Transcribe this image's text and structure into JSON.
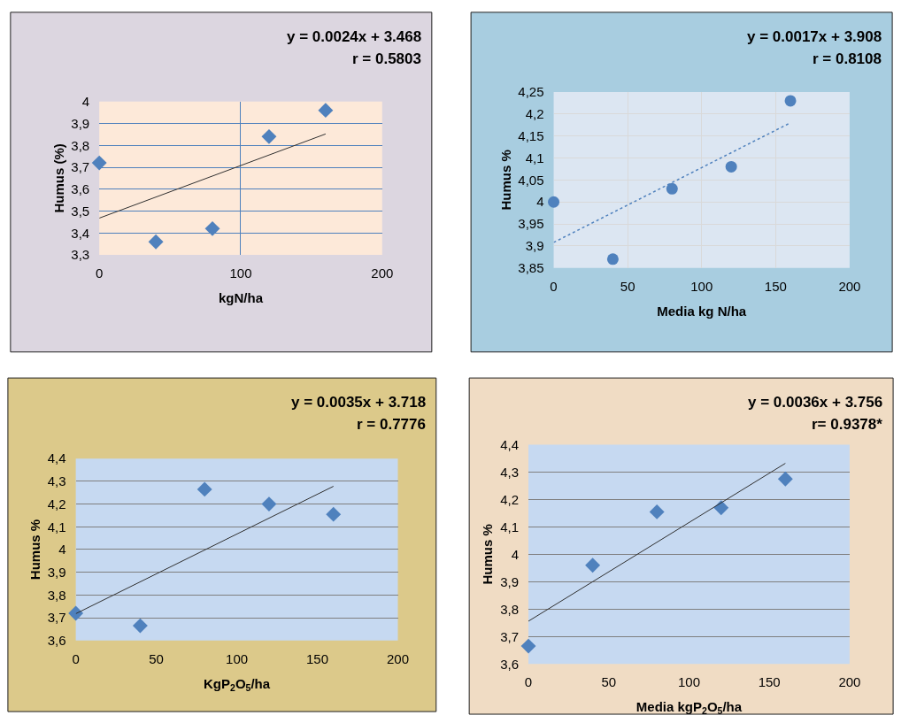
{
  "chart_data": [
    {
      "type": "scatter",
      "xlabel": "kgN/ha",
      "ylabel": "Humus (%)",
      "annotations": [
        "y = 0.0024x + 3.468",
        "r = 0.5803"
      ],
      "xlim": [
        0,
        200
      ],
      "xticks": [
        0,
        100,
        200
      ],
      "ylim": [
        3.3,
        4
      ],
      "yticks": [
        {
          "value": 3.3,
          "label": "3,3"
        },
        {
          "value": 3.4,
          "label": "3,4"
        },
        {
          "value": 3.5,
          "label": "3,5"
        },
        {
          "value": 3.6,
          "label": "3,6"
        },
        {
          "value": 3.7,
          "label": "3,7"
        },
        {
          "value": 3.8,
          "label": "3,8"
        },
        {
          "value": 3.9,
          "label": "3,9"
        },
        4
      ],
      "grid": true,
      "series": [
        {
          "color": "#4f81bd",
          "marker": "diamond",
          "x": [
            0,
            40,
            80,
            120,
            160
          ],
          "values": [
            3.72,
            3.36,
            3.42,
            3.84,
            3.96
          ]
        },
        {
          "type": "line",
          "color": "#303030",
          "line_style": "solid",
          "x": [
            0,
            160
          ],
          "values": [
            3.468,
            3.852
          ]
        }
      ]
    },
    {
      "type": "scatter",
      "xlabel": "Media kg N/ha",
      "ylabel": "Humus %",
      "annotations": [
        "y = 0.0017x + 3.908",
        "r = 0.8108"
      ],
      "xlim": [
        0,
        200
      ],
      "xticks": [
        0,
        50,
        100,
        150,
        200
      ],
      "ylim": [
        3.85,
        4.25
      ],
      "yticks": [
        {
          "value": 3.85,
          "label": "3,85"
        },
        {
          "value": 3.9,
          "label": "3,9"
        },
        {
          "value": 3.95,
          "label": "3,95"
        },
        4,
        {
          "value": 4.05,
          "label": "4,05"
        },
        {
          "value": 4.1,
          "label": "4,1"
        },
        {
          "value": 4.15,
          "label": "4,15"
        },
        {
          "value": 4.2,
          "label": "4,2"
        },
        {
          "value": 4.25,
          "label": "4,25"
        }
      ],
      "grid": true,
      "series": [
        {
          "color": "#4f81bd",
          "marker": "circle",
          "x": [
            0,
            40,
            80,
            120,
            160
          ],
          "values": [
            4.0,
            3.87,
            4.03,
            4.08,
            4.23
          ]
        },
        {
          "type": "line",
          "color": "#4f81bd",
          "line_style": "dotted",
          "x": [
            0,
            160
          ],
          "values": [
            3.908,
            4.18
          ]
        }
      ]
    },
    {
      "type": "scatter",
      "xlabel": "KgP$_{2}$O$_{5}$/ha",
      "ylabel": "Humus %",
      "annotations": [
        "y = 0.0035x + 3.718",
        "r = 0.7776"
      ],
      "xlim": [
        0,
        200
      ],
      "xticks": [
        0,
        50,
        100,
        150,
        200
      ],
      "ylim": [
        3.6,
        4.4
      ],
      "yticks": [
        {
          "value": 3.6,
          "label": "3,6"
        },
        {
          "value": 3.7,
          "label": "3,7"
        },
        {
          "value": 3.8,
          "label": "3,8"
        },
        {
          "value": 3.9,
          "label": "3,9"
        },
        4,
        {
          "value": 4.1,
          "label": "4,1"
        },
        {
          "value": 4.2,
          "label": "4,2"
        },
        {
          "value": 4.3,
          "label": "4,3"
        },
        {
          "value": 4.4,
          "label": "4,4"
        }
      ],
      "grid": "y",
      "series": [
        {
          "color": "#4f81bd",
          "marker": "diamond",
          "x": [
            0,
            40,
            80,
            120,
            160
          ],
          "values": [
            3.72,
            3.665,
            4.265,
            4.2,
            4.155
          ]
        },
        {
          "type": "line",
          "color": "#303030",
          "line_style": "solid",
          "x": [
            0,
            160
          ],
          "values": [
            3.718,
            4.278
          ]
        }
      ]
    },
    {
      "type": "scatter",
      "xlabel": "Media kgP$_{2}$O$_{5}$/ha",
      "ylabel": "Humus %",
      "annotations": [
        "y = 0.0036x + 3.756",
        "r= 0.9378*"
      ],
      "xlim": [
        0,
        200
      ],
      "xticks": [
        0,
        50,
        100,
        150,
        200
      ],
      "ylim": [
        3.6,
        4.4
      ],
      "yticks": [
        {
          "value": 3.6,
          "label": "3,6"
        },
        {
          "value": 3.7,
          "label": "3,7"
        },
        {
          "value": 3.8,
          "label": "3,8"
        },
        {
          "value": 3.9,
          "label": "3,9"
        },
        4,
        {
          "value": 4.1,
          "label": "4,1"
        },
        {
          "value": 4.2,
          "label": "4,2"
        },
        {
          "value": 4.3,
          "label": "4,3"
        },
        {
          "value": 4.4,
          "label": "4,4"
        }
      ],
      "grid": "y",
      "series": [
        {
          "color": "#4f81bd",
          "marker": "diamond",
          "x": [
            0,
            40,
            80,
            120,
            160
          ],
          "values": [
            3.665,
            3.96,
            4.155,
            4.17,
            4.275
          ]
        },
        {
          "type": "line",
          "color": "#303030",
          "line_style": "solid",
          "x": [
            0,
            160
          ],
          "values": [
            3.756,
            4.332
          ]
        }
      ]
    }
  ]
}
